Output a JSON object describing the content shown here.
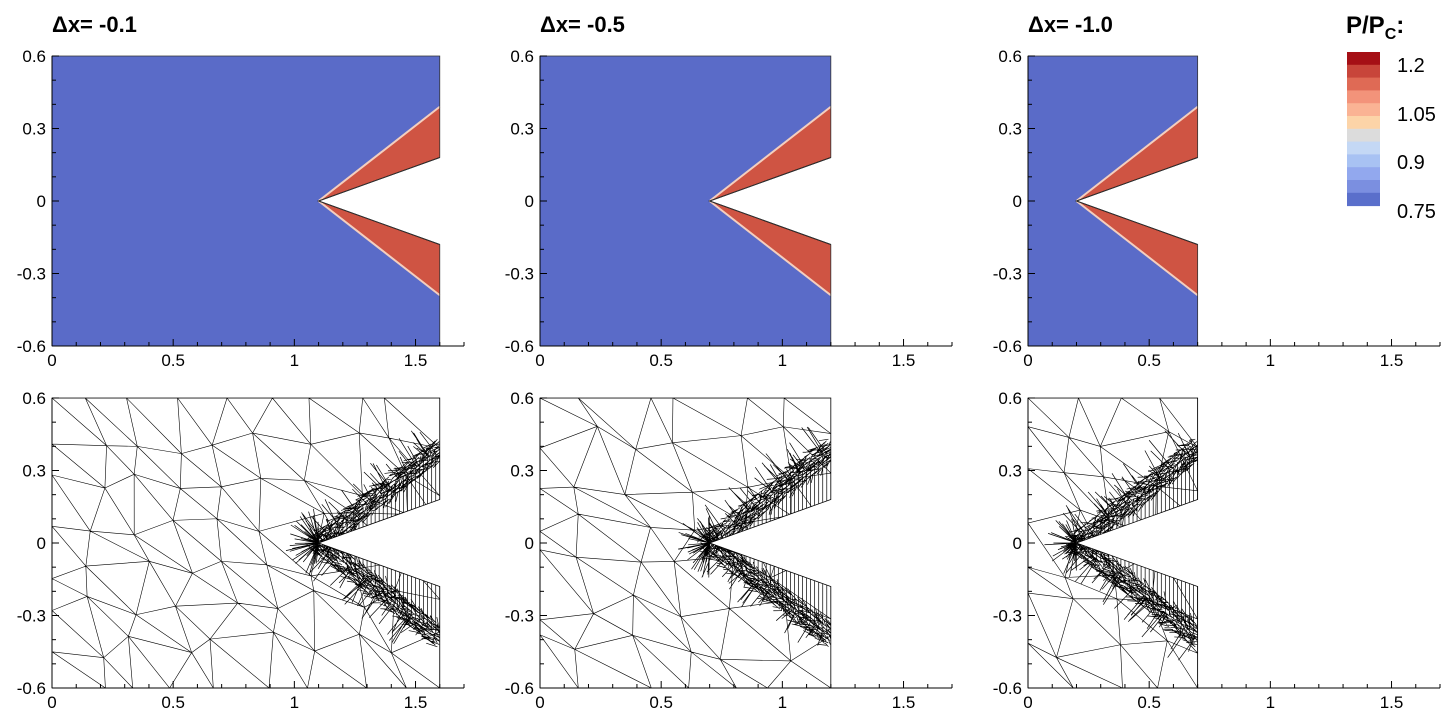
{
  "legend": {
    "title_main": "P/P",
    "title_sub": "C",
    "title_suffix": ":",
    "labels": [
      "1.2",
      "1.05",
      "0.9",
      "0.75"
    ],
    "colors": [
      "#a50f15",
      "#c8453a",
      "#df6a55",
      "#f3937a",
      "#fab394",
      "#fcd4a8",
      "#dcdcdc",
      "#c4d8f5",
      "#a8c2f3",
      "#92a8ee",
      "#7b8fe0",
      "#5a6fcb"
    ]
  },
  "colors": {
    "field": "#5a6bc8",
    "shock": "#cf5443",
    "shock_edge": "#f4cfbf"
  },
  "chart_data": [
    {
      "type": "contour",
      "title": "Δx= -0.1",
      "x_right": 1.6,
      "apex_x": 1.1,
      "wedge_y": [
        0.18,
        0.39
      ],
      "xlim": [
        0,
        1.7
      ],
      "ylim": [
        -0.6,
        0.6
      ],
      "xticks": [
        0,
        0.5,
        1,
        1.5
      ],
      "yticks": [
        -0.6,
        -0.3,
        0,
        0.3,
        0.6
      ],
      "xtick_labels": [
        "0",
        "0.5",
        "1",
        "1.5"
      ],
      "ytick_labels": [
        "-0.6",
        "-0.3",
        "0",
        "0.3",
        "0.6"
      ]
    },
    {
      "type": "contour",
      "title": "Δx= -0.5",
      "x_right": 1.2,
      "apex_x": 0.7,
      "wedge_y": [
        0.18,
        0.39
      ],
      "xlim": [
        0,
        1.7
      ],
      "ylim": [
        -0.6,
        0.6
      ],
      "xticks": [
        0,
        0.5,
        1,
        1.5
      ],
      "yticks": [
        -0.6,
        -0.3,
        0,
        0.3,
        0.6
      ],
      "xtick_labels": [
        "0",
        "0.5",
        "1",
        "1.5"
      ],
      "ytick_labels": [
        "-0.6",
        "-0.3",
        "0",
        "0.3",
        "0.6"
      ]
    },
    {
      "type": "contour",
      "title": "Δx= -1.0",
      "x_right": 0.7,
      "apex_x": 0.2,
      "wedge_y": [
        0.18,
        0.39
      ],
      "xlim": [
        0,
        1.7
      ],
      "ylim": [
        -0.6,
        0.6
      ],
      "xticks": [
        0,
        0.5,
        1,
        1.5
      ],
      "yticks": [
        -0.6,
        -0.3,
        0,
        0.3,
        0.6
      ],
      "xtick_labels": [
        "0",
        "0.5",
        "1",
        "1.5"
      ],
      "ytick_labels": [
        "-0.6",
        "-0.3",
        "0",
        "0.3",
        "0.6"
      ]
    },
    {
      "type": "mesh",
      "title": "",
      "x_right": 1.6,
      "apex_x": 1.1,
      "wedge_y": [
        0.18,
        0.39
      ],
      "xlim": [
        0,
        1.7
      ],
      "ylim": [
        -0.6,
        0.6
      ],
      "xticks": [
        0,
        0.5,
        1,
        1.5
      ],
      "yticks": [
        -0.6,
        -0.3,
        0,
        0.3,
        0.6
      ],
      "xtick_labels": [
        "0",
        "0.5",
        "1",
        "1.5"
      ],
      "ytick_labels": [
        "-0.6",
        "-0.3",
        "0",
        "0.3",
        "0.6"
      ]
    },
    {
      "type": "mesh",
      "title": "",
      "x_right": 1.2,
      "apex_x": 0.7,
      "wedge_y": [
        0.18,
        0.39
      ],
      "xlim": [
        0,
        1.7
      ],
      "ylim": [
        -0.6,
        0.6
      ],
      "xticks": [
        0,
        0.5,
        1,
        1.5
      ],
      "yticks": [
        -0.6,
        -0.3,
        0,
        0.3,
        0.6
      ],
      "xtick_labels": [
        "0",
        "0.5",
        "1",
        "1.5"
      ],
      "ytick_labels": [
        "-0.6",
        "-0.3",
        "0",
        "0.3",
        "0.6"
      ]
    },
    {
      "type": "mesh",
      "title": "",
      "x_right": 0.7,
      "apex_x": 0.2,
      "wedge_y": [
        0.18,
        0.39
      ],
      "xlim": [
        0,
        1.7
      ],
      "ylim": [
        -0.6,
        0.6
      ],
      "xticks": [
        0,
        0.5,
        1,
        1.5
      ],
      "yticks": [
        -0.6,
        -0.3,
        0,
        0.3,
        0.6
      ],
      "xtick_labels": [
        "0",
        "0.5",
        "1",
        "1.5"
      ],
      "ytick_labels": [
        "-0.6",
        "-0.3",
        "0",
        "0.3",
        "0.6"
      ]
    }
  ]
}
